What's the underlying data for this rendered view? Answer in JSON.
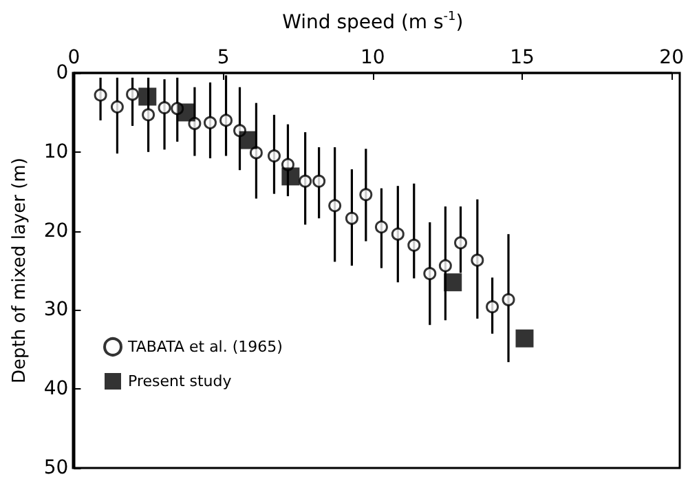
{
  "chart_data": {
    "type": "scatter",
    "xlabel": "Wind speed (m s$^{-1}$)",
    "ylabel": "Depth of mixed layer (m)",
    "xlim": [
      0,
      20
    ],
    "xticks": [
      0,
      5,
      10,
      15,
      20
    ],
    "ylim": [
      50,
      0
    ],
    "yticks": [
      0,
      10,
      20,
      30,
      40,
      50
    ],
    "grid": false,
    "legend": "bottom left",
    "series": [
      {
        "name": "TABATA et al. (1965)",
        "color": "#000000",
        "marker": "circle",
        "x": [
          0.89,
          1.45,
          1.96,
          2.49,
          3.03,
          3.46,
          4.04,
          4.56,
          5.09,
          5.55,
          6.1,
          6.7,
          7.16,
          7.74,
          8.2,
          8.73,
          9.3,
          9.77,
          10.29,
          10.84,
          11.38,
          11.91,
          12.43,
          12.94,
          13.5,
          14.0,
          14.54
        ],
        "values": [
          2.8,
          4.3,
          2.7,
          5.3,
          4.4,
          4.5,
          6.4,
          6.3,
          6.0,
          7.3,
          10.1,
          10.5,
          11.6,
          13.7,
          13.7,
          16.8,
          18.4,
          15.4,
          19.5,
          20.4,
          21.8,
          25.4,
          24.4,
          21.5,
          23.7,
          29.6,
          28.7
        ],
        "errors": [
          [
            0.6,
            6.0
          ],
          [
            0.6,
            10.2
          ],
          [
            0.6,
            6.7
          ],
          [
            0.6,
            10.0
          ],
          [
            0.8,
            9.7
          ],
          [
            0.6,
            8.7
          ],
          [
            1.8,
            10.5
          ],
          [
            1.2,
            10.8
          ],
          [
            0.3,
            10.5
          ],
          [
            1.8,
            12.3
          ],
          [
            3.8,
            15.9
          ],
          [
            5.3,
            15.3
          ],
          [
            6.5,
            15.6
          ],
          [
            7.5,
            19.2
          ],
          [
            9.4,
            18.4
          ],
          [
            9.4,
            23.9
          ],
          [
            12.2,
            24.4
          ],
          [
            9.6,
            21.3
          ],
          [
            14.6,
            24.7
          ],
          [
            14.3,
            26.5
          ],
          [
            14.0,
            26.0
          ],
          [
            18.9,
            31.9
          ],
          [
            16.9,
            31.3
          ],
          [
            16.9,
            25.3
          ],
          [
            16.0,
            31.1
          ],
          [
            25.9,
            33.0
          ],
          [
            20.4,
            36.6
          ]
        ]
      },
      {
        "name": "Present study",
        "color": "#000000",
        "marker": "square",
        "x": [
          2.46,
          3.76,
          5.83,
          7.25,
          12.68,
          15.08
        ],
        "values": [
          3.0,
          5.0,
          8.5,
          13.1,
          26.5,
          33.6
        ]
      }
    ]
  }
}
